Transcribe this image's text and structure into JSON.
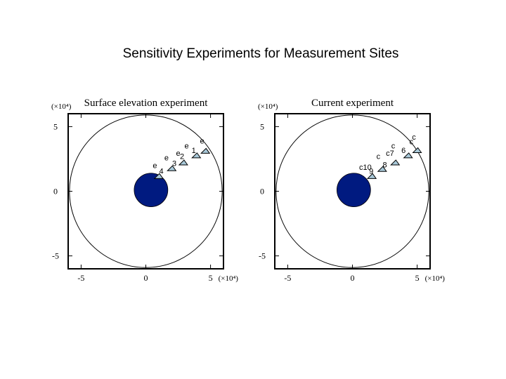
{
  "figure": {
    "title": "Sensitivity Experiments for Measurement Sites"
  },
  "colors": {
    "island": "#001a80",
    "marker_fill": "#a8c8d8",
    "stroke": "#000000"
  },
  "chart_data": [
    {
      "type": "scatter",
      "title": "Surface elevation experiment",
      "xlim": [
        -6,
        6
      ],
      "ylim": [
        -6,
        6
      ],
      "x_ticks": [
        {
          "value": -5,
          "label": "-5"
        },
        {
          "value": 0,
          "label": "0"
        },
        {
          "value": 5,
          "label": "5"
        }
      ],
      "y_ticks": [
        {
          "value": 5,
          "label": "5"
        },
        {
          "value": 0,
          "label": "0"
        },
        {
          "value": -5,
          "label": "-5"
        }
      ],
      "x_scale_label": "(×10⁴)",
      "y_scale_label": "(×10⁴)",
      "domain_circle": {
        "cx": 0,
        "cy": 0,
        "r": 5.9
      },
      "island": {
        "cx": 0.4,
        "cy": 0.1,
        "r": 1.3
      },
      "sites": [
        {
          "x": 1.0,
          "y": 1.15,
          "labels": [
            {
              "text": "4",
              "dx": 0.2,
              "dy": 0.2
            },
            {
              "text": "e",
              "dx": -0.3,
              "dy": 0.65
            }
          ]
        },
        {
          "x": 2.0,
          "y": 1.75,
          "labels": [
            {
              "text": "3",
              "dx": 0.2,
              "dy": 0.2
            },
            {
              "text": "e",
              "dx": -0.4,
              "dy": 0.65
            }
          ]
        },
        {
          "x": 2.9,
          "y": 2.2,
          "labels": [
            {
              "text": "2",
              "dx": -0.1,
              "dy": 0.3
            },
            {
              "text": "e",
              "dx": -0.4,
              "dy": 0.55
            }
          ]
        },
        {
          "x": 3.9,
          "y": 2.75,
          "labels": [
            {
              "text": "1",
              "dx": -0.2,
              "dy": 0.2
            },
            {
              "text": "e",
              "dx": -0.75,
              "dy": 0.55
            }
          ]
        },
        {
          "x": 4.6,
          "y": 3.1,
          "labels": [
            {
              "text": "e",
              "dx": -0.25,
              "dy": 0.6
            }
          ]
        }
      ]
    },
    {
      "type": "scatter",
      "title": "Current experiment",
      "xlim": [
        -6,
        6
      ],
      "ylim": [
        -6,
        6
      ],
      "x_ticks": [
        {
          "value": -5,
          "label": "-5"
        },
        {
          "value": 0,
          "label": "0"
        },
        {
          "value": 5,
          "label": "5"
        }
      ],
      "y_ticks": [
        {
          "value": 5,
          "label": "5"
        },
        {
          "value": 0,
          "label": "0"
        },
        {
          "value": -5,
          "label": "-5"
        }
      ],
      "x_scale_label": "(×10⁴)",
      "y_scale_label": "(×10⁴)",
      "domain_circle": {
        "cx": 0,
        "cy": 0,
        "r": 5.9
      },
      "island": {
        "cx": 0.1,
        "cy": 0.1,
        "r": 1.3
      },
      "sites": [
        {
          "x": 1.5,
          "y": 1.15,
          "labels": [
            {
              "text": "c10",
              "dx": -0.5,
              "dy": 0.5
            },
            {
              "text": "9",
              "dx": -0.05,
              "dy": 0.2
            }
          ]
        },
        {
          "x": 2.3,
          "y": 1.7,
          "labels": [
            {
              "text": "8",
              "dx": 0.2,
              "dy": 0.15
            },
            {
              "text": "c",
              "dx": -0.3,
              "dy": 0.8
            }
          ]
        },
        {
          "x": 3.3,
          "y": 2.2,
          "labels": [
            {
              "text": "c7",
              "dx": -0.4,
              "dy": 0.55
            }
          ]
        },
        {
          "x": 4.3,
          "y": 2.75,
          "labels": [
            {
              "text": "c",
              "dx": -1.15,
              "dy": 0.55
            },
            {
              "text": "6",
              "dx": -0.35,
              "dy": 0.2
            }
          ]
        },
        {
          "x": 5.0,
          "y": 3.15,
          "labels": [
            {
              "text": "c",
              "dx": -0.45,
              "dy": 0.5
            },
            {
              "text": "c",
              "dx": -0.25,
              "dy": 0.85
            }
          ]
        }
      ]
    }
  ]
}
